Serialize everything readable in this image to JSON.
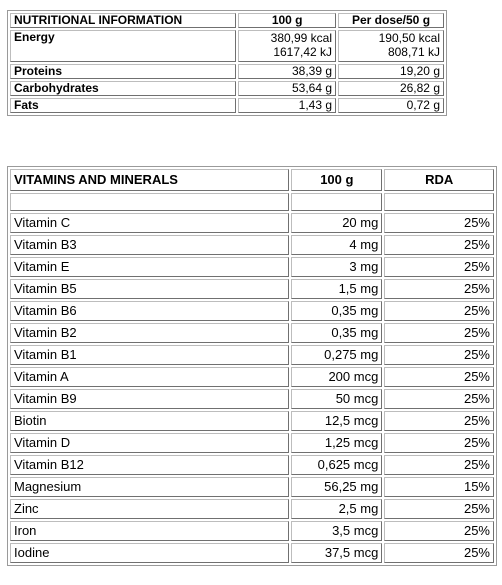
{
  "nutrition": {
    "headers": [
      "NUTRITIONAL INFORMATION",
      "100 g",
      "Per dose/50 g"
    ],
    "energy": {
      "label": "Energy",
      "per100_kcal": "380,99 kcal",
      "per100_kj": "1617,42 kJ",
      "dose_kcal": "190,50 kcal",
      "dose_kj": "808,71 kJ"
    },
    "rows": [
      {
        "label": "Proteins",
        "per100": "38,39 g",
        "dose": "19,20 g"
      },
      {
        "label": "Carbohydrates",
        "per100": "53,64 g",
        "dose": "26,82 g"
      },
      {
        "label": "Fats",
        "per100": "1,43 g",
        "dose": "0,72 g"
      }
    ]
  },
  "vitamins": {
    "headers": [
      "VITAMINS AND MINERALS",
      "100 g",
      "RDA"
    ],
    "rows": [
      {
        "name": "Vitamin C",
        "amount": "20 mg",
        "rda": "25%"
      },
      {
        "name": "Vitamin B3",
        "amount": "4 mg",
        "rda": "25%"
      },
      {
        "name": "Vitamin E",
        "amount": "3 mg",
        "rda": "25%"
      },
      {
        "name": "Vitamin B5",
        "amount": "1,5 mg",
        "rda": "25%"
      },
      {
        "name": "Vitamin B6",
        "amount": "0,35 mg",
        "rda": "25%"
      },
      {
        "name": "Vitamin B2",
        "amount": "0,35 mg",
        "rda": "25%"
      },
      {
        "name": "Vitamin B1",
        "amount": "0,275 mg",
        "rda": "25%"
      },
      {
        "name": "Vitamin A",
        "amount": "200 mcg",
        "rda": "25%"
      },
      {
        "name": "Vitamin B9",
        "amount": "50 mcg",
        "rda": "25%"
      },
      {
        "name": "Biotin",
        "amount": "12,5 mcg",
        "rda": "25%"
      },
      {
        "name": "Vitamin D",
        "amount": "1,25 mcg",
        "rda": "25%"
      },
      {
        "name": "Vitamin B12",
        "amount": "0,625 mcg",
        "rda": "25%"
      },
      {
        "name": "Magnesium",
        "amount": "56,25 mg",
        "rda": "15%"
      },
      {
        "name": "Zinc",
        "amount": "2,5 mg",
        "rda": "25%"
      },
      {
        "name": "Iron",
        "amount": "3,5 mcg",
        "rda": "25%"
      },
      {
        "name": "Iodine",
        "amount": "37,5 mcg",
        "rda": "25%"
      }
    ]
  }
}
